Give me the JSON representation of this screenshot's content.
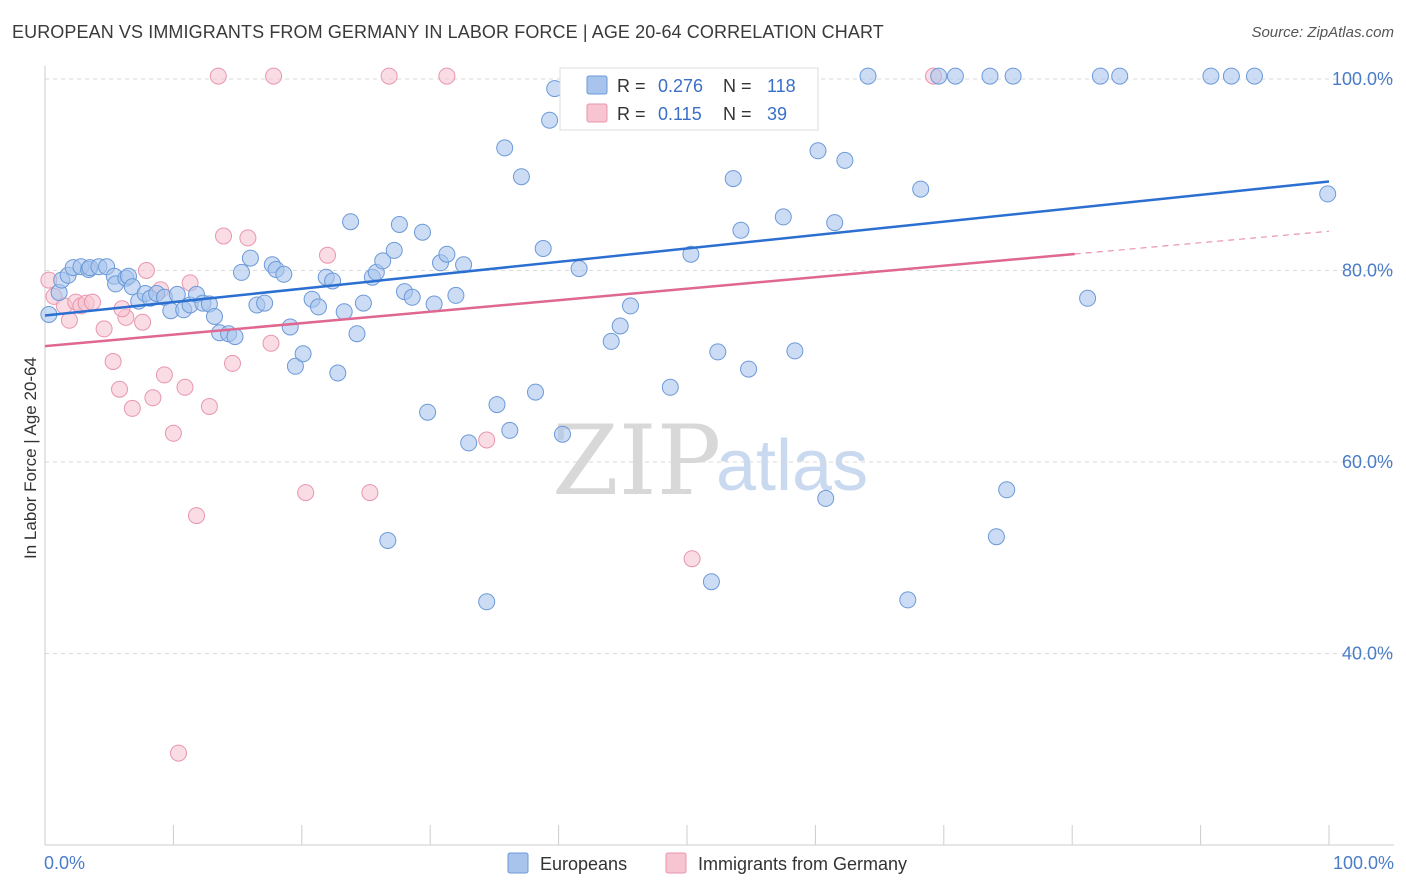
{
  "header": {
    "title": "EUROPEAN VS IMMIGRANTS FROM GERMANY IN LABOR FORCE | AGE 20-64 CORRELATION CHART",
    "source": "Source: ZipAtlas.com"
  },
  "watermark": {
    "zip": "ZIP",
    "atlas": "atlas"
  },
  "colors": {
    "europeans_fill": "#a8c4ec",
    "europeans_stroke": "#6c9ad8",
    "europeans_line": "#2b6fd1",
    "immigrants_fill": "#f7c4d2",
    "immigrants_stroke": "#e896ae",
    "immigrants_line": "#e06790",
    "grid": "#d9d9d9",
    "tick_text": "#4a7cc8"
  },
  "legend": {
    "r_label": "R =",
    "n_label": "N =",
    "europeans": {
      "r": "0.276",
      "n": "118"
    },
    "immigrants": {
      "r": "0.115",
      "n": "39"
    }
  },
  "chart_data": {
    "type": "scatter",
    "title": "EUROPEAN VS IMMIGRANTS FROM GERMANY IN LABOR FORCE | AGE 20-64 CORRELATION CHART",
    "xlabel": "",
    "ylabel": "In Labor Force | Age 20-64",
    "xlim": [
      0,
      100
    ],
    "ylim": [
      20,
      104
    ],
    "x_tick_labels": [
      "0.0%",
      "100.0%"
    ],
    "y_ticks": [
      40,
      60,
      80,
      100
    ],
    "y_tick_labels": [
      "40.0%",
      "60.0%",
      "80.0%",
      "100.0%"
    ],
    "grid": true,
    "legend_position": "top-center",
    "series": [
      {
        "name": "Europeans",
        "r": 0.276,
        "n": 118,
        "trend": {
          "x": [
            0,
            100
          ],
          "y": [
            75.3,
            89.3
          ],
          "dashed_from": null
        },
        "points": [
          [
            0.3,
            75.4
          ],
          [
            1.1,
            77.7
          ],
          [
            1.3,
            79.0
          ],
          [
            1.8,
            79.5
          ],
          [
            2.2,
            80.3
          ],
          [
            2.8,
            80.4
          ],
          [
            3.4,
            80.1
          ],
          [
            3.5,
            80.3
          ],
          [
            4.2,
            80.4
          ],
          [
            4.8,
            80.4
          ],
          [
            5.4,
            79.4
          ],
          [
            5.5,
            78.6
          ],
          [
            6.3,
            79.2
          ],
          [
            6.5,
            79.4
          ],
          [
            6.8,
            78.3
          ],
          [
            7.3,
            76.8
          ],
          [
            7.8,
            77.6
          ],
          [
            8.2,
            77.1
          ],
          [
            8.7,
            77.6
          ],
          [
            9.3,
            77.2
          ],
          [
            9.8,
            75.8
          ],
          [
            10.3,
            77.5
          ],
          [
            10.8,
            75.9
          ],
          [
            11.3,
            76.4
          ],
          [
            11.8,
            77.5
          ],
          [
            12.3,
            76.6
          ],
          [
            12.8,
            76.5
          ],
          [
            13.2,
            75.2
          ],
          [
            13.6,
            73.5
          ],
          [
            14.3,
            73.4
          ],
          [
            14.8,
            73.1
          ],
          [
            15.3,
            79.8
          ],
          [
            16.0,
            81.3
          ],
          [
            16.5,
            76.4
          ],
          [
            17.1,
            76.6
          ],
          [
            17.7,
            80.6
          ],
          [
            18.0,
            80.1
          ],
          [
            18.6,
            79.6
          ],
          [
            19.1,
            74.1
          ],
          [
            19.5,
            70.0
          ],
          [
            20.1,
            71.3
          ],
          [
            20.8,
            77.0
          ],
          [
            21.3,
            76.2
          ],
          [
            21.9,
            79.3
          ],
          [
            22.4,
            78.9
          ],
          [
            22.8,
            69.3
          ],
          [
            23.3,
            75.7
          ],
          [
            23.8,
            85.1
          ],
          [
            24.3,
            73.4
          ],
          [
            24.8,
            76.6
          ],
          [
            25.5,
            79.3
          ],
          [
            25.8,
            79.8
          ],
          [
            26.3,
            81.0
          ],
          [
            26.7,
            51.8
          ],
          [
            27.2,
            82.1
          ],
          [
            27.6,
            84.8
          ],
          [
            28.0,
            77.8
          ],
          [
            28.6,
            77.2
          ],
          [
            29.4,
            84.0
          ],
          [
            29.8,
            65.2
          ],
          [
            30.3,
            76.5
          ],
          [
            30.8,
            80.8
          ],
          [
            31.3,
            81.7
          ],
          [
            32.0,
            77.4
          ],
          [
            32.6,
            80.6
          ],
          [
            33.0,
            62.0
          ],
          [
            34.4,
            45.4
          ],
          [
            35.2,
            66.0
          ],
          [
            35.8,
            92.8
          ],
          [
            36.2,
            63.3
          ],
          [
            37.1,
            89.8
          ],
          [
            38.2,
            67.3
          ],
          [
            38.8,
            82.3
          ],
          [
            39.3,
            95.7
          ],
          [
            39.7,
            99.0
          ],
          [
            40.3,
            62.9
          ],
          [
            41.1,
            100.3
          ],
          [
            41.6,
            80.2
          ],
          [
            42.3,
            100.3
          ],
          [
            43.2,
            100.3
          ],
          [
            44.1,
            72.6
          ],
          [
            44.8,
            74.2
          ],
          [
            45.6,
            76.3
          ],
          [
            46.2,
            100.3
          ],
          [
            47.3,
            97.0
          ],
          [
            48.1,
            99.9
          ],
          [
            48.7,
            67.8
          ],
          [
            49.5,
            100.3
          ],
          [
            50.3,
            81.7
          ],
          [
            51.0,
            100.3
          ],
          [
            51.9,
            47.5
          ],
          [
            52.4,
            71.5
          ],
          [
            53.3,
            100.3
          ],
          [
            53.6,
            89.6
          ],
          [
            54.2,
            84.2
          ],
          [
            54.8,
            69.7
          ],
          [
            55.8,
            100.3
          ],
          [
            57.2,
            100.3
          ],
          [
            57.5,
            85.6
          ],
          [
            58.4,
            71.6
          ],
          [
            60.2,
            92.5
          ],
          [
            60.8,
            56.2
          ],
          [
            61.5,
            85.0
          ],
          [
            62.3,
            91.5
          ],
          [
            64.1,
            100.3
          ],
          [
            67.2,
            45.6
          ],
          [
            68.2,
            88.5
          ],
          [
            69.6,
            100.3
          ],
          [
            70.9,
            100.3
          ],
          [
            73.6,
            100.3
          ],
          [
            74.1,
            52.2
          ],
          [
            74.9,
            57.1
          ],
          [
            75.4,
            100.3
          ],
          [
            81.2,
            77.1
          ],
          [
            82.2,
            100.3
          ],
          [
            83.7,
            100.3
          ],
          [
            90.8,
            100.3
          ],
          [
            92.4,
            100.3
          ],
          [
            94.2,
            100.3
          ],
          [
            99.9,
            88.0
          ]
        ]
      },
      {
        "name": "Immigrants from Germany",
        "r": 0.115,
        "n": 39,
        "trend": {
          "x": [
            0,
            100
          ],
          "y": [
            72.1,
            84.1
          ],
          "dashed_from": 80.2
        },
        "points": [
          [
            0.3,
            79.0
          ],
          [
            0.7,
            77.3
          ],
          [
            1.5,
            76.3
          ],
          [
            1.9,
            74.8
          ],
          [
            2.4,
            76.7
          ],
          [
            2.8,
            76.3
          ],
          [
            3.2,
            76.6
          ],
          [
            3.7,
            76.7
          ],
          [
            4.6,
            73.9
          ],
          [
            5.3,
            70.5
          ],
          [
            5.8,
            67.6
          ],
          [
            6.3,
            75.1
          ],
          [
            6.8,
            65.6
          ],
          [
            7.6,
            74.6
          ],
          [
            7.9,
            80.0
          ],
          [
            8.4,
            66.7
          ],
          [
            9.3,
            69.1
          ],
          [
            10.0,
            63.0
          ],
          [
            10.4,
            29.6
          ],
          [
            10.9,
            67.8
          ],
          [
            11.3,
            78.7
          ],
          [
            11.8,
            54.4
          ],
          [
            12.8,
            65.8
          ],
          [
            13.9,
            83.6
          ],
          [
            14.6,
            70.3
          ],
          [
            15.8,
            83.4
          ],
          [
            17.6,
            72.4
          ],
          [
            20.3,
            56.8
          ],
          [
            22.0,
            81.6
          ],
          [
            25.3,
            56.8
          ],
          [
            34.4,
            62.3
          ],
          [
            50.4,
            49.9
          ],
          [
            69.2,
            100.3
          ],
          [
            6.0,
            76.0
          ],
          [
            9.0,
            78.0
          ],
          [
            13.5,
            100.3
          ],
          [
            17.8,
            100.3
          ],
          [
            26.8,
            100.3
          ],
          [
            31.3,
            100.3
          ]
        ]
      }
    ]
  }
}
